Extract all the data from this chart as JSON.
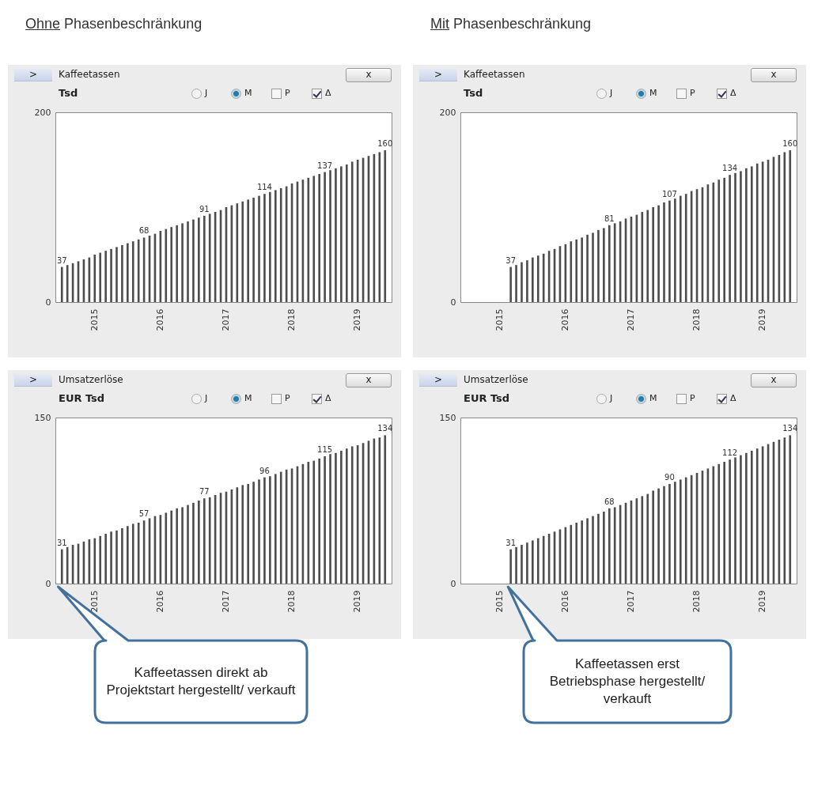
{
  "chart_data": [
    {
      "type": "bar",
      "subtitle": "Ohne Phasenbeschränkung",
      "title": "Kaffeetassen",
      "ylabel": "Tsd",
      "color": "#4d4d4d",
      "ylim": [
        0,
        200
      ],
      "yticks": [
        0,
        200
      ],
      "annotations": [
        ">",
        "J",
        "M",
        "P",
        "Δ",
        "x"
      ],
      "categories": [
        null,
        null,
        null,
        null,
        null,
        null,
        "2015",
        null,
        null,
        null,
        null,
        null,
        null,
        null,
        null,
        null,
        null,
        null,
        "2016",
        null,
        null,
        null,
        null,
        null,
        null,
        null,
        null,
        null,
        null,
        null,
        "2017",
        null,
        null,
        null,
        null,
        null,
        null,
        null,
        null,
        null,
        null,
        null,
        "2018",
        null,
        null,
        null,
        null,
        null,
        null,
        null,
        null,
        null,
        null,
        null,
        "2019",
        null,
        null,
        null,
        null,
        null
      ],
      "values": [
        37,
        39,
        41,
        43,
        45,
        47,
        50,
        52,
        54,
        56,
        58,
        60,
        62,
        64,
        66,
        68,
        70,
        72,
        75,
        77,
        79,
        81,
        83,
        85,
        87,
        89,
        91,
        93,
        95,
        97,
        100,
        102,
        104,
        106,
        108,
        110,
        112,
        114,
        116,
        118,
        120,
        122,
        125,
        127,
        129,
        131,
        133,
        135,
        137,
        139,
        141,
        143,
        145,
        148,
        150,
        152,
        154,
        156,
        158,
        160
      ],
      "value_labels": [
        "37",
        null,
        null,
        null,
        null,
        null,
        null,
        null,
        null,
        null,
        null,
        null,
        null,
        null,
        null,
        "68",
        null,
        null,
        null,
        null,
        null,
        null,
        null,
        null,
        null,
        null,
        "91",
        null,
        null,
        null,
        null,
        null,
        null,
        null,
        null,
        null,
        null,
        "114",
        null,
        null,
        null,
        null,
        null,
        null,
        null,
        null,
        null,
        null,
        "137",
        null,
        null,
        null,
        null,
        null,
        null,
        null,
        null,
        null,
        null,
        "160"
      ]
    },
    {
      "type": "bar",
      "subtitle": "Mit Phasenbeschränkung",
      "title": "Kaffeetassen",
      "ylabel": "Tsd",
      "color": "#4d4d4d",
      "ylim": [
        0,
        200
      ],
      "yticks": [
        0,
        200
      ],
      "annotations": [
        ">",
        "J",
        "M",
        "P",
        "Δ",
        "x"
      ],
      "categories": [
        null,
        null,
        null,
        null,
        null,
        null,
        "2015",
        null,
        null,
        null,
        null,
        null,
        null,
        null,
        null,
        null,
        null,
        null,
        "2016",
        null,
        null,
        null,
        null,
        null,
        null,
        null,
        null,
        null,
        null,
        null,
        "2017",
        null,
        null,
        null,
        null,
        null,
        null,
        null,
        null,
        null,
        null,
        null,
        "2018",
        null,
        null,
        null,
        null,
        null,
        null,
        null,
        null,
        null,
        null,
        null,
        "2019",
        null,
        null,
        null,
        null,
        null
      ],
      "values": [
        null,
        null,
        null,
        null,
        null,
        null,
        null,
        null,
        37,
        39,
        42,
        44,
        47,
        49,
        51,
        54,
        56,
        59,
        61,
        64,
        66,
        68,
        71,
        73,
        76,
        78,
        81,
        83,
        85,
        88,
        90,
        92,
        95,
        97,
        100,
        102,
        105,
        107,
        109,
        112,
        114,
        117,
        119,
        121,
        124,
        126,
        129,
        131,
        134,
        136,
        138,
        141,
        143,
        146,
        148,
        150,
        153,
        155,
        158,
        160
      ],
      "value_labels": [
        null,
        null,
        null,
        null,
        null,
        null,
        null,
        null,
        "37",
        null,
        null,
        null,
        null,
        null,
        null,
        null,
        null,
        null,
        null,
        null,
        null,
        null,
        null,
        null,
        null,
        null,
        "81",
        null,
        null,
        null,
        null,
        null,
        null,
        null,
        null,
        null,
        null,
        "107",
        null,
        null,
        null,
        null,
        null,
        null,
        null,
        null,
        null,
        null,
        "134",
        null,
        null,
        null,
        null,
        null,
        null,
        null,
        null,
        null,
        null,
        "160"
      ]
    },
    {
      "type": "bar",
      "title": "Umsatzerlöse",
      "ylabel": "EUR Tsd",
      "color": "#4d4d4d",
      "ylim": [
        0,
        150
      ],
      "yticks": [
        0,
        150
      ],
      "annotations": [
        ">",
        "J",
        "M",
        "P",
        "Δ",
        "x",
        "Kaffeetassen direkt ab Projektstart hergestellt/ verkauft"
      ],
      "categories": [
        null,
        null,
        null,
        null,
        null,
        null,
        "2015",
        null,
        null,
        null,
        null,
        null,
        null,
        null,
        null,
        null,
        null,
        null,
        "2016",
        null,
        null,
        null,
        null,
        null,
        null,
        null,
        null,
        null,
        null,
        null,
        "2017",
        null,
        null,
        null,
        null,
        null,
        null,
        null,
        null,
        null,
        null,
        null,
        "2018",
        null,
        null,
        null,
        null,
        null,
        null,
        null,
        null,
        null,
        null,
        null,
        "2019",
        null,
        null,
        null,
        null,
        null
      ],
      "values": [
        31,
        33,
        35,
        36,
        38,
        40,
        41,
        43,
        45,
        47,
        48,
        50,
        52,
        54,
        55,
        57,
        59,
        61,
        62,
        64,
        66,
        68,
        69,
        71,
        73,
        75,
        77,
        78,
        80,
        82,
        83,
        85,
        87,
        89,
        90,
        92,
        94,
        96,
        97,
        99,
        101,
        103,
        104,
        106,
        108,
        110,
        111,
        113,
        115,
        117,
        118,
        120,
        122,
        124,
        125,
        127,
        129,
        131,
        132,
        134
      ],
      "value_labels": [
        "31",
        null,
        null,
        null,
        null,
        null,
        null,
        null,
        null,
        null,
        null,
        null,
        null,
        null,
        null,
        "57",
        null,
        null,
        null,
        null,
        null,
        null,
        null,
        null,
        null,
        null,
        "77",
        null,
        null,
        null,
        null,
        null,
        null,
        null,
        null,
        null,
        null,
        "96",
        null,
        null,
        null,
        null,
        null,
        null,
        null,
        null,
        null,
        null,
        "115",
        null,
        null,
        null,
        null,
        null,
        null,
        null,
        null,
        null,
        null,
        "134"
      ]
    },
    {
      "type": "bar",
      "title": "Umsatzerlöse",
      "ylabel": "EUR Tsd",
      "color": "#4d4d4d",
      "ylim": [
        0,
        150
      ],
      "yticks": [
        0,
        150
      ],
      "annotations": [
        ">",
        "J",
        "M",
        "P",
        "Δ",
        "x",
        "Kaffeetassen erst Betriebsphase hergestellt/ verkauft"
      ],
      "categories": [
        null,
        null,
        null,
        null,
        null,
        null,
        "2015",
        null,
        null,
        null,
        null,
        null,
        null,
        null,
        null,
        null,
        null,
        null,
        "2016",
        null,
        null,
        null,
        null,
        null,
        null,
        null,
        null,
        null,
        null,
        null,
        "2017",
        null,
        null,
        null,
        null,
        null,
        null,
        null,
        null,
        null,
        null,
        null,
        "2018",
        null,
        null,
        null,
        null,
        null,
        null,
        null,
        null,
        null,
        null,
        null,
        "2019",
        null,
        null,
        null,
        null,
        null
      ],
      "values": [
        0,
        0,
        0,
        0,
        0,
        0,
        0,
        0,
        31,
        33,
        35,
        37,
        39,
        41,
        43,
        45,
        47,
        49,
        51,
        53,
        55,
        57,
        59,
        61,
        63,
        65,
        68,
        69,
        71,
        73,
        75,
        77,
        79,
        81,
        84,
        86,
        88,
        90,
        92,
        94,
        96,
        98,
        100,
        102,
        104,
        106,
        108,
        110,
        112,
        114,
        116,
        118,
        120,
        122,
        124,
        126,
        128,
        130,
        132,
        134
      ],
      "value_labels": [
        null,
        null,
        null,
        null,
        null,
        null,
        null,
        null,
        "31",
        null,
        null,
        null,
        null,
        null,
        null,
        null,
        null,
        null,
        null,
        null,
        null,
        null,
        null,
        null,
        null,
        null,
        "68",
        null,
        null,
        null,
        null,
        null,
        null,
        null,
        null,
        null,
        null,
        "90",
        null,
        null,
        null,
        null,
        null,
        null,
        null,
        null,
        null,
        null,
        "112",
        null,
        null,
        null,
        null,
        null,
        null,
        null,
        null,
        null,
        null,
        "134"
      ]
    }
  ]
}
